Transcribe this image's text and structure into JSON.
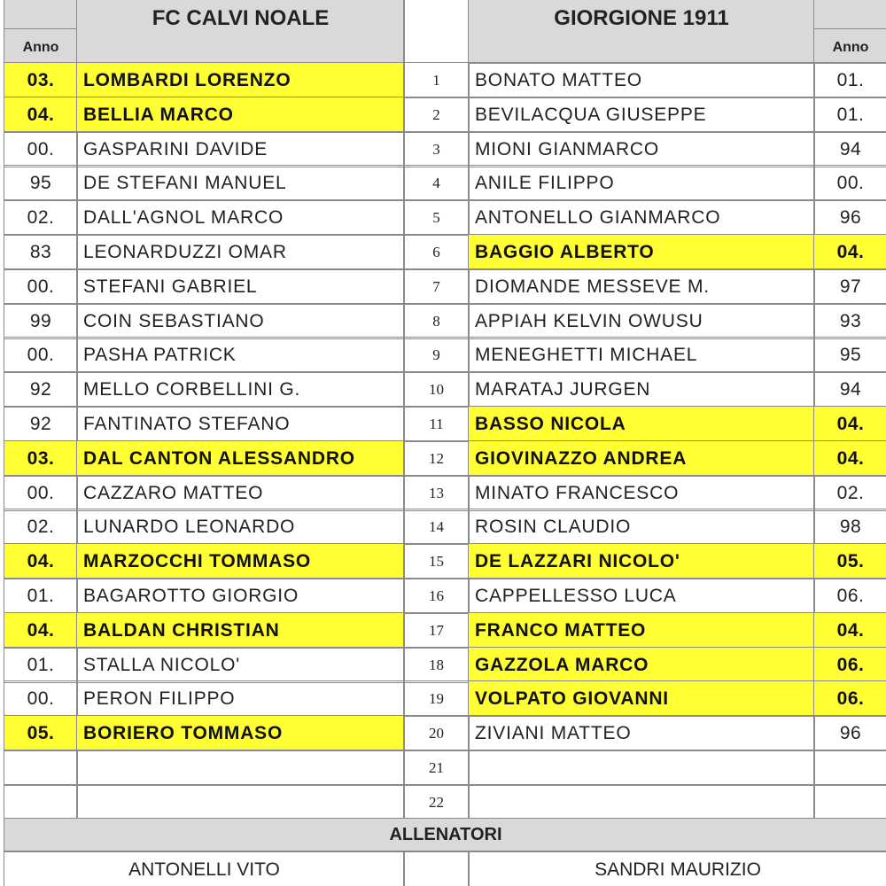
{
  "home": {
    "team": "FC CALVI NOALE",
    "anno_label": "Anno",
    "players": [
      {
        "anno": "03.",
        "name": "LOMBARDI LORENZO",
        "highlight": true
      },
      {
        "anno": "04.",
        "name": "BELLIA MARCO",
        "highlight": true
      },
      {
        "anno": "00.",
        "name": "GASPARINI DAVIDE",
        "highlight": false
      },
      {
        "anno": "95",
        "name": "DE STEFANI MANUEL",
        "highlight": false
      },
      {
        "anno": "02.",
        "name": "DALL'AGNOL MARCO",
        "highlight": false
      },
      {
        "anno": "83",
        "name": "LEONARDUZZI OMAR",
        "highlight": false
      },
      {
        "anno": "00.",
        "name": "STEFANI GABRIEL",
        "highlight": false
      },
      {
        "anno": "99",
        "name": "COIN SEBASTIANO",
        "highlight": false
      },
      {
        "anno": "00.",
        "name": "PASHA PATRICK",
        "highlight": false
      },
      {
        "anno": "92",
        "name": "MELLO CORBELLINI G.",
        "highlight": false
      },
      {
        "anno": "92",
        "name": "FANTINATO STEFANO",
        "highlight": false
      },
      {
        "anno": "03.",
        "name": "DAL CANTON ALESSANDRO",
        "highlight": true
      },
      {
        "anno": "00.",
        "name": "CAZZARO MATTEO",
        "highlight": false
      },
      {
        "anno": "02.",
        "name": "LUNARDO LEONARDO",
        "highlight": false
      },
      {
        "anno": "04.",
        "name": "MARZOCCHI TOMMASO",
        "highlight": true
      },
      {
        "anno": "01.",
        "name": "BAGAROTTO GIORGIO",
        "highlight": false
      },
      {
        "anno": "04.",
        "name": "BALDAN CHRISTIAN",
        "highlight": true
      },
      {
        "anno": "01.",
        "name": "STALLA NICOLO'",
        "highlight": false
      },
      {
        "anno": "00.",
        "name": "PERON FILIPPO",
        "highlight": false
      },
      {
        "anno": "05.",
        "name": "BORIERO TOMMASO",
        "highlight": true
      },
      {
        "anno": "",
        "name": "",
        "highlight": false
      },
      {
        "anno": "",
        "name": "",
        "highlight": false
      }
    ],
    "coach": "ANTONELLI VITO"
  },
  "away": {
    "team": "GIORGIONE 1911",
    "anno_label": "Anno",
    "players": [
      {
        "anno": "01.",
        "name": "BONATO MATTEO",
        "highlight": false
      },
      {
        "anno": "01.",
        "name": "BEVILACQUA GIUSEPPE",
        "highlight": false
      },
      {
        "anno": "94",
        "name": "MIONI GIANMARCO",
        "highlight": false
      },
      {
        "anno": "00.",
        "name": "ANILE FILIPPO",
        "highlight": false
      },
      {
        "anno": "96",
        "name": "ANTONELLO GIANMARCO",
        "highlight": false
      },
      {
        "anno": "04.",
        "name": "BAGGIO ALBERTO",
        "highlight": true
      },
      {
        "anno": "97",
        "name": "DIOMANDE MESSEVE M.",
        "highlight": false
      },
      {
        "anno": "93",
        "name": "APPIAH KELVIN OWUSU",
        "highlight": false
      },
      {
        "anno": "95",
        "name": "MENEGHETTI MICHAEL",
        "highlight": false
      },
      {
        "anno": "94",
        "name": "MARATAJ JURGEN",
        "highlight": false
      },
      {
        "anno": "04.",
        "name": "BASSO NICOLA",
        "highlight": true
      },
      {
        "anno": "04.",
        "name": "GIOVINAZZO ANDREA",
        "highlight": true
      },
      {
        "anno": "02.",
        "name": "MINATO FRANCESCO",
        "highlight": false
      },
      {
        "anno": "98",
        "name": "ROSIN CLAUDIO",
        "highlight": false
      },
      {
        "anno": "05.",
        "name": "DE LAZZARI NICOLO'",
        "highlight": true
      },
      {
        "anno": "06.",
        "name": "CAPPELLESSO LUCA",
        "highlight": false
      },
      {
        "anno": "04.",
        "name": "FRANCO MATTEO",
        "highlight": true
      },
      {
        "anno": "06.",
        "name": "GAZZOLA MARCO",
        "highlight": true
      },
      {
        "anno": "06.",
        "name": "VOLPATO GIOVANNI",
        "highlight": true
      },
      {
        "anno": "96",
        "name": "ZIVIANI MATTEO",
        "highlight": false
      },
      {
        "anno": "",
        "name": "",
        "highlight": false
      },
      {
        "anno": "",
        "name": "",
        "highlight": false
      }
    ],
    "coach": "SANDRI MAURIZIO"
  },
  "numbers": [
    "1",
    "2",
    "3",
    "4",
    "5",
    "6",
    "7",
    "8",
    "9",
    "10",
    "11",
    "12",
    "13",
    "14",
    "15",
    "16",
    "17",
    "18",
    "19",
    "20",
    "21",
    "22"
  ],
  "coaches_label": "ALLENATORI",
  "colors": {
    "highlight": "#ffff33",
    "header": "#d9d9d9",
    "grid": "#8a8a8a"
  }
}
